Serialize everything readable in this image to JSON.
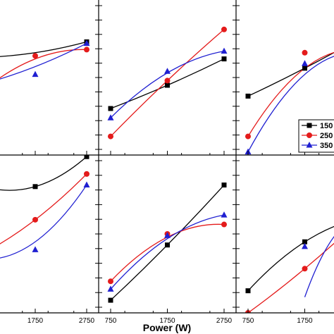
{
  "figure": {
    "xlabel": "Power (W)",
    "x_tick_labels": [
      "750",
      "1750",
      "2750"
    ],
    "legend": [
      "150",
      "250",
      "350"
    ]
  },
  "colors": {
    "black_series": "#000000",
    "red_series": "#e41b1b",
    "blue_series": "#1f1fd1",
    "axes": "#000000"
  },
  "chart_data": [
    {
      "type": "scatter",
      "panel": "top-left",
      "x": [
        750,
        1750,
        2750
      ],
      "xlim": [
        750,
        2750
      ],
      "ylim": [
        0,
        100
      ],
      "series": [
        {
          "name": "150",
          "marker": "square",
          "color": "#000000",
          "points_y": [
            null,
            null,
            73
          ],
          "fit_y": [
            63,
            66,
            73
          ]
        },
        {
          "name": "250",
          "marker": "circle",
          "color": "#e41b1b",
          "points_y": [
            null,
            64,
            68
          ],
          "fit_y": [
            42,
            62,
            68
          ]
        },
        {
          "name": "350",
          "marker": "triangle",
          "color": "#1f1fd1",
          "points_y": [
            null,
            52,
            72
          ],
          "fit_y": [
            46,
            57,
            72
          ]
        }
      ]
    },
    {
      "type": "scatter",
      "panel": "top-center",
      "x": [
        750,
        1750,
        2750
      ],
      "xlim": [
        750,
        2750
      ],
      "ylim": [
        0,
        100
      ],
      "series": [
        {
          "name": "150",
          "marker": "square",
          "color": "#000000",
          "points_y": [
            30,
            45,
            62
          ],
          "fit_y": [
            30,
            45,
            62
          ]
        },
        {
          "name": "250",
          "marker": "circle",
          "color": "#e41b1b",
          "points_y": [
            12,
            48,
            81
          ],
          "fit_y": [
            12,
            48,
            81
          ]
        },
        {
          "name": "350",
          "marker": "triangle",
          "color": "#1f1fd1",
          "points_y": [
            24,
            54,
            67
          ],
          "fit_y": [
            24,
            53,
            67
          ]
        }
      ]
    },
    {
      "type": "scatter",
      "panel": "top-right",
      "x": [
        750,
        1750,
        2750
      ],
      "xlim": [
        750,
        2750
      ],
      "ylim": [
        0,
        100
      ],
      "series": [
        {
          "name": "150",
          "marker": "square",
          "color": "#000000",
          "points_y": [
            38,
            56,
            null
          ],
          "fit_y": [
            38,
            56,
            76
          ]
        },
        {
          "name": "250",
          "marker": "circle",
          "color": "#e41b1b",
          "points_y": [
            12,
            66,
            null
          ],
          "fit_y": [
            12,
            56,
            68
          ]
        },
        {
          "name": "350",
          "marker": "triangle",
          "color": "#1f1fd1",
          "points_y": [
            2,
            59,
            null
          ],
          "fit_y": [
            2,
            52,
            66
          ]
        }
      ]
    },
    {
      "type": "scatter",
      "panel": "bottom-left",
      "x": [
        750,
        1750,
        2750
      ],
      "xlim": [
        750,
        2750
      ],
      "ylim": [
        0,
        100
      ],
      "series": [
        {
          "name": "150",
          "marker": "square",
          "color": "#000000",
          "points_y": [
            null,
            80,
            99
          ],
          "fit_y": [
            80,
            80,
            99
          ]
        },
        {
          "name": "250",
          "marker": "circle",
          "color": "#e41b1b",
          "points_y": [
            null,
            59,
            88
          ],
          "fit_y": [
            38,
            59,
            88
          ]
        },
        {
          "name": "350",
          "marker": "triangle",
          "color": "#1f1fd1",
          "points_y": [
            null,
            40,
            81
          ],
          "fit_y": [
            34,
            45,
            81
          ]
        }
      ]
    },
    {
      "type": "scatter",
      "panel": "bottom-center",
      "x": [
        750,
        1750,
        2750
      ],
      "xlim": [
        750,
        2750
      ],
      "ylim": [
        0,
        100
      ],
      "series": [
        {
          "name": "150",
          "marker": "square",
          "color": "#000000",
          "points_y": [
            8,
            43,
            81
          ],
          "fit_y": [
            8,
            43,
            81
          ]
        },
        {
          "name": "250",
          "marker": "circle",
          "color": "#e41b1b",
          "points_y": [
            20,
            50,
            56
          ],
          "fit_y": [
            20,
            48,
            56
          ]
        },
        {
          "name": "350",
          "marker": "triangle",
          "color": "#1f1fd1",
          "points_y": [
            15,
            49,
            62
          ],
          "fit_y": [
            15,
            47,
            62
          ]
        }
      ]
    },
    {
      "type": "scatter",
      "panel": "bottom-right",
      "x": [
        750,
        1750,
        2750
      ],
      "xlim": [
        750,
        2750
      ],
      "ylim": [
        0,
        100
      ],
      "series": [
        {
          "name": "150",
          "marker": "square",
          "color": "#000000",
          "points_y": [
            14,
            45,
            null
          ],
          "fit_y": [
            14,
            45,
            60
          ]
        },
        {
          "name": "250",
          "marker": "circle",
          "color": "#e41b1b",
          "points_y": [
            0,
            28,
            null
          ],
          "fit_y": [
            0,
            28,
            60
          ]
        },
        {
          "name": "350",
          "marker": "triangle",
          "color": "#1f1fd1",
          "points_y": [
            null,
            42,
            null
          ],
          "fit_y": [
            null,
            10,
            60
          ]
        }
      ]
    }
  ]
}
